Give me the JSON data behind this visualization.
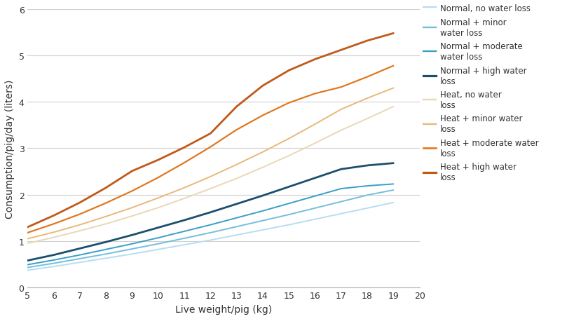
{
  "x": [
    5,
    6,
    7,
    8,
    9,
    10,
    11,
    12,
    13,
    14,
    15,
    16,
    17,
    18,
    19
  ],
  "series": [
    {
      "label": "Normal, no water loss",
      "color": "#b8ddf0",
      "linewidth": 1.4,
      "y": [
        0.37,
        0.45,
        0.54,
        0.63,
        0.72,
        0.82,
        0.92,
        1.02,
        1.13,
        1.24,
        1.35,
        1.47,
        1.59,
        1.71,
        1.83
      ]
    },
    {
      "label": "Normal + minor\nwater loss",
      "color": "#74bedd",
      "linewidth": 1.4,
      "y": [
        0.43,
        0.52,
        0.62,
        0.72,
        0.83,
        0.94,
        1.06,
        1.18,
        1.31,
        1.44,
        1.57,
        1.71,
        1.85,
        1.99,
        2.1
      ]
    },
    {
      "label": "Normal + moderate\nwater loss",
      "color": "#3a9fc5",
      "linewidth": 1.4,
      "y": [
        0.49,
        0.59,
        0.7,
        0.82,
        0.94,
        1.07,
        1.21,
        1.35,
        1.5,
        1.65,
        1.81,
        1.97,
        2.13,
        2.19,
        2.23
      ]
    },
    {
      "label": "Normal + high water\nloss",
      "color": "#1b4f6e",
      "linewidth": 2.0,
      "y": [
        0.58,
        0.7,
        0.84,
        0.98,
        1.13,
        1.29,
        1.45,
        1.62,
        1.8,
        1.98,
        2.17,
        2.36,
        2.55,
        2.63,
        2.68
      ]
    },
    {
      "label": "Heat, no water\nloss",
      "color": "#e8d8b8",
      "linewidth": 1.4,
      "y": [
        0.95,
        1.08,
        1.22,
        1.37,
        1.54,
        1.72,
        1.92,
        2.13,
        2.35,
        2.59,
        2.84,
        3.11,
        3.39,
        3.64,
        3.9
      ]
    },
    {
      "label": "Heat + minor water\nloss",
      "color": "#e8b87a",
      "linewidth": 1.4,
      "y": [
        1.05,
        1.19,
        1.35,
        1.53,
        1.72,
        1.93,
        2.15,
        2.39,
        2.65,
        2.92,
        3.21,
        3.52,
        3.84,
        4.08,
        4.3
      ]
    },
    {
      "label": "Heat + moderate water\nloss",
      "color": "#e07820",
      "linewidth": 1.6,
      "y": [
        1.18,
        1.37,
        1.58,
        1.82,
        2.08,
        2.37,
        2.69,
        3.03,
        3.4,
        3.71,
        3.98,
        4.18,
        4.32,
        4.54,
        4.78
      ]
    },
    {
      "label": "Heat + high water\nloss",
      "color": "#c05a18",
      "linewidth": 2.0,
      "y": [
        1.3,
        1.55,
        1.83,
        2.15,
        2.51,
        2.75,
        3.02,
        3.32,
        3.9,
        4.35,
        4.68,
        4.92,
        5.12,
        5.32,
        5.48
      ]
    }
  ],
  "xlabel": "Live weight/pig (kg)",
  "ylabel": "Consumption/pig/day (liters)",
  "xlim": [
    5,
    20
  ],
  "ylim": [
    0,
    6
  ],
  "xticks": [
    5,
    6,
    7,
    8,
    9,
    10,
    11,
    12,
    13,
    14,
    15,
    16,
    17,
    18,
    19,
    20
  ],
  "yticks": [
    0,
    1,
    2,
    3,
    4,
    5,
    6
  ],
  "background_color": "#ffffff",
  "grid_color": "#d0d0d0"
}
